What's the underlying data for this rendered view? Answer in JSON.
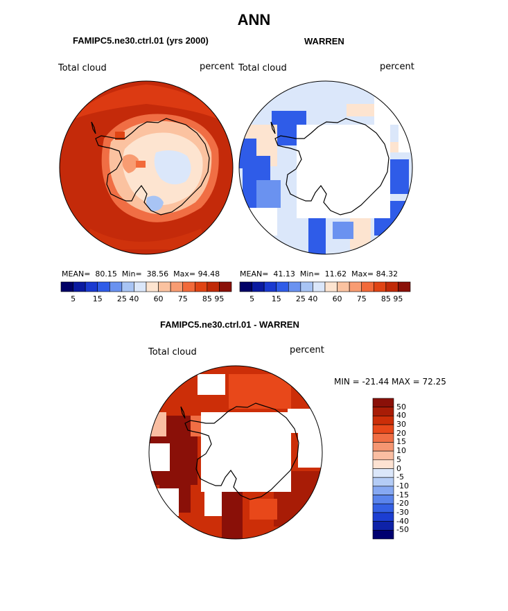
{
  "title": "ANN",
  "panels": [
    {
      "title": "FAMIPC5.ne30.ctrl.01 (yrs 2000)",
      "variable": "Total cloud",
      "units": "percent",
      "stats": {
        "mean_label": "MEAN=",
        "mean": "80.15",
        "min_label": "Min=",
        "min": "38.56",
        "max_label": "Max=",
        "max": "94.48"
      }
    },
    {
      "title": "WARREN",
      "variable": "Total cloud",
      "units": "percent",
      "stats": {
        "mean_label": "MEAN=",
        "mean": "41.13",
        "min_label": "Min=",
        "min": "11.62",
        "max_label": "Max=",
        "max": "84.32"
      }
    },
    {
      "title": "FAMIPC5.ne30.ctrl.01 - WARREN",
      "variable": "Total cloud",
      "units": "percent",
      "minmax": "MIN = -21.44  MAX =   72.25"
    }
  ],
  "colorbar_top": {
    "colors": [
      "#000066",
      "#0a1aa0",
      "#1a3ad0",
      "#2f5ce8",
      "#6a92f0",
      "#a8c4f4",
      "#dbe7fa",
      "#fde4d0",
      "#fbc2a0",
      "#f89c72",
      "#f26a3a",
      "#e04414",
      "#c02a08",
      "#8a1008"
    ],
    "tick_labels": [
      "5",
      "15",
      "25",
      "40",
      "60",
      "75",
      "85",
      "95"
    ]
  },
  "colorbar_diff": {
    "colors": [
      "#8a1008",
      "#a81c06",
      "#cc2e08",
      "#e8481a",
      "#f06e44",
      "#f59672",
      "#fabea2",
      "#fde2d2",
      "#dbe7fa",
      "#b4ccf6",
      "#86a8f2",
      "#5a84ec",
      "#3460e4",
      "#1c3ed2",
      "#0e22a8",
      "#000070"
    ],
    "tick_labels": [
      "50",
      "40",
      "30",
      "20",
      "15",
      "10",
      "5",
      "0",
      "-5",
      "-10",
      "-15",
      "-20",
      "-30",
      "-40",
      "-50"
    ]
  }
}
